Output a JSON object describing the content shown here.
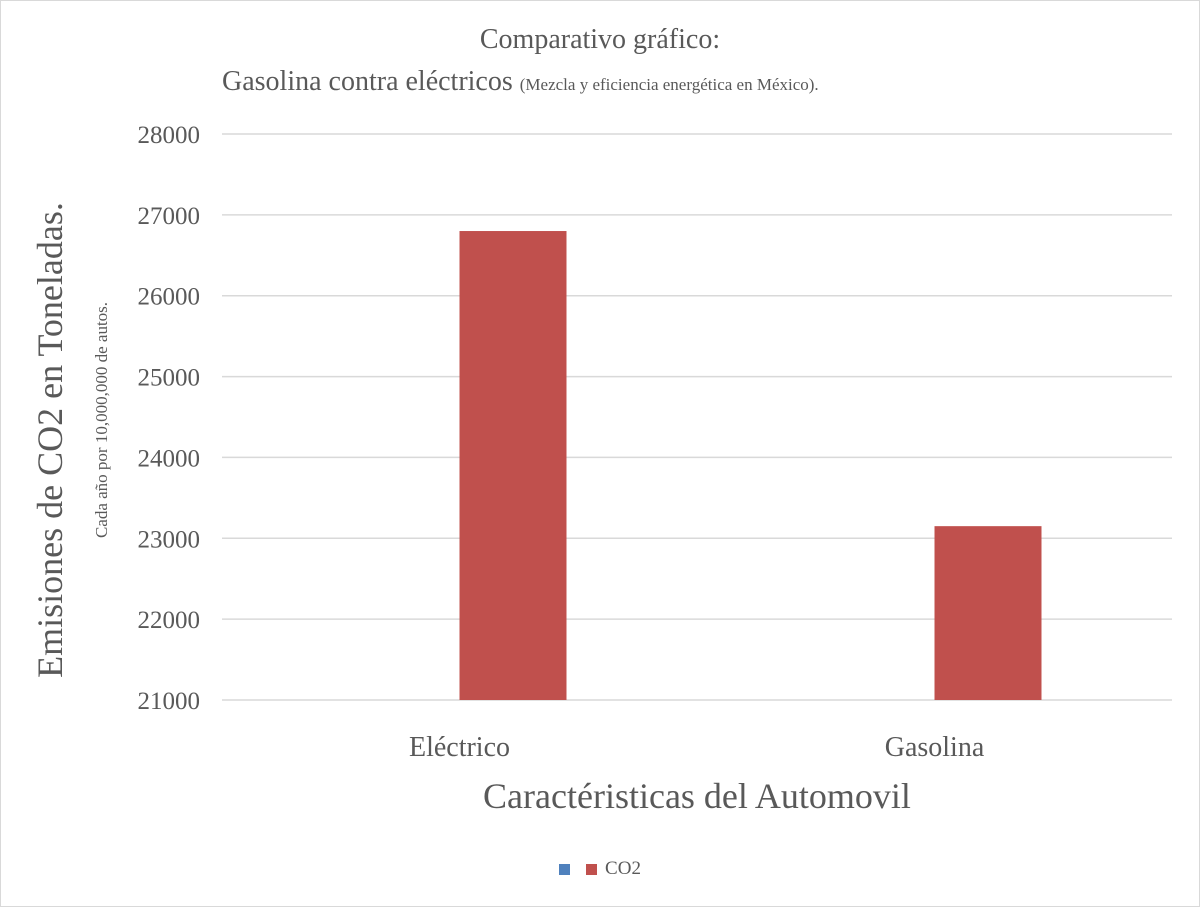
{
  "chart_data": {
    "type": "bar",
    "title": "Comparativo gráfico:",
    "subtitle_main": "Gasolina contra eléctricos",
    "subtitle_note": "(Mezcla y eficiencia energética en  México).",
    "ylabel": "Emisiones de CO2 en Toneladas.",
    "ylabel_sub": "Cada año por 10,000,000 de autos.",
    "xlabel": "Caractéristicas del Automovil",
    "categories": [
      "Eléctrico",
      "Gasolina"
    ],
    "series": [
      {
        "name": "",
        "values": [
          null,
          null
        ],
        "color": "#4f81bd"
      },
      {
        "name": "CO2",
        "values": [
          26800,
          23150
        ],
        "color": "#c0504d"
      }
    ],
    "ylim": [
      21000,
      28000
    ],
    "yticks": [
      "21000",
      "22000",
      "23000",
      "24000",
      "25000",
      "26000",
      "27000",
      "28000"
    ],
    "grid": true,
    "legend": "bottom"
  }
}
